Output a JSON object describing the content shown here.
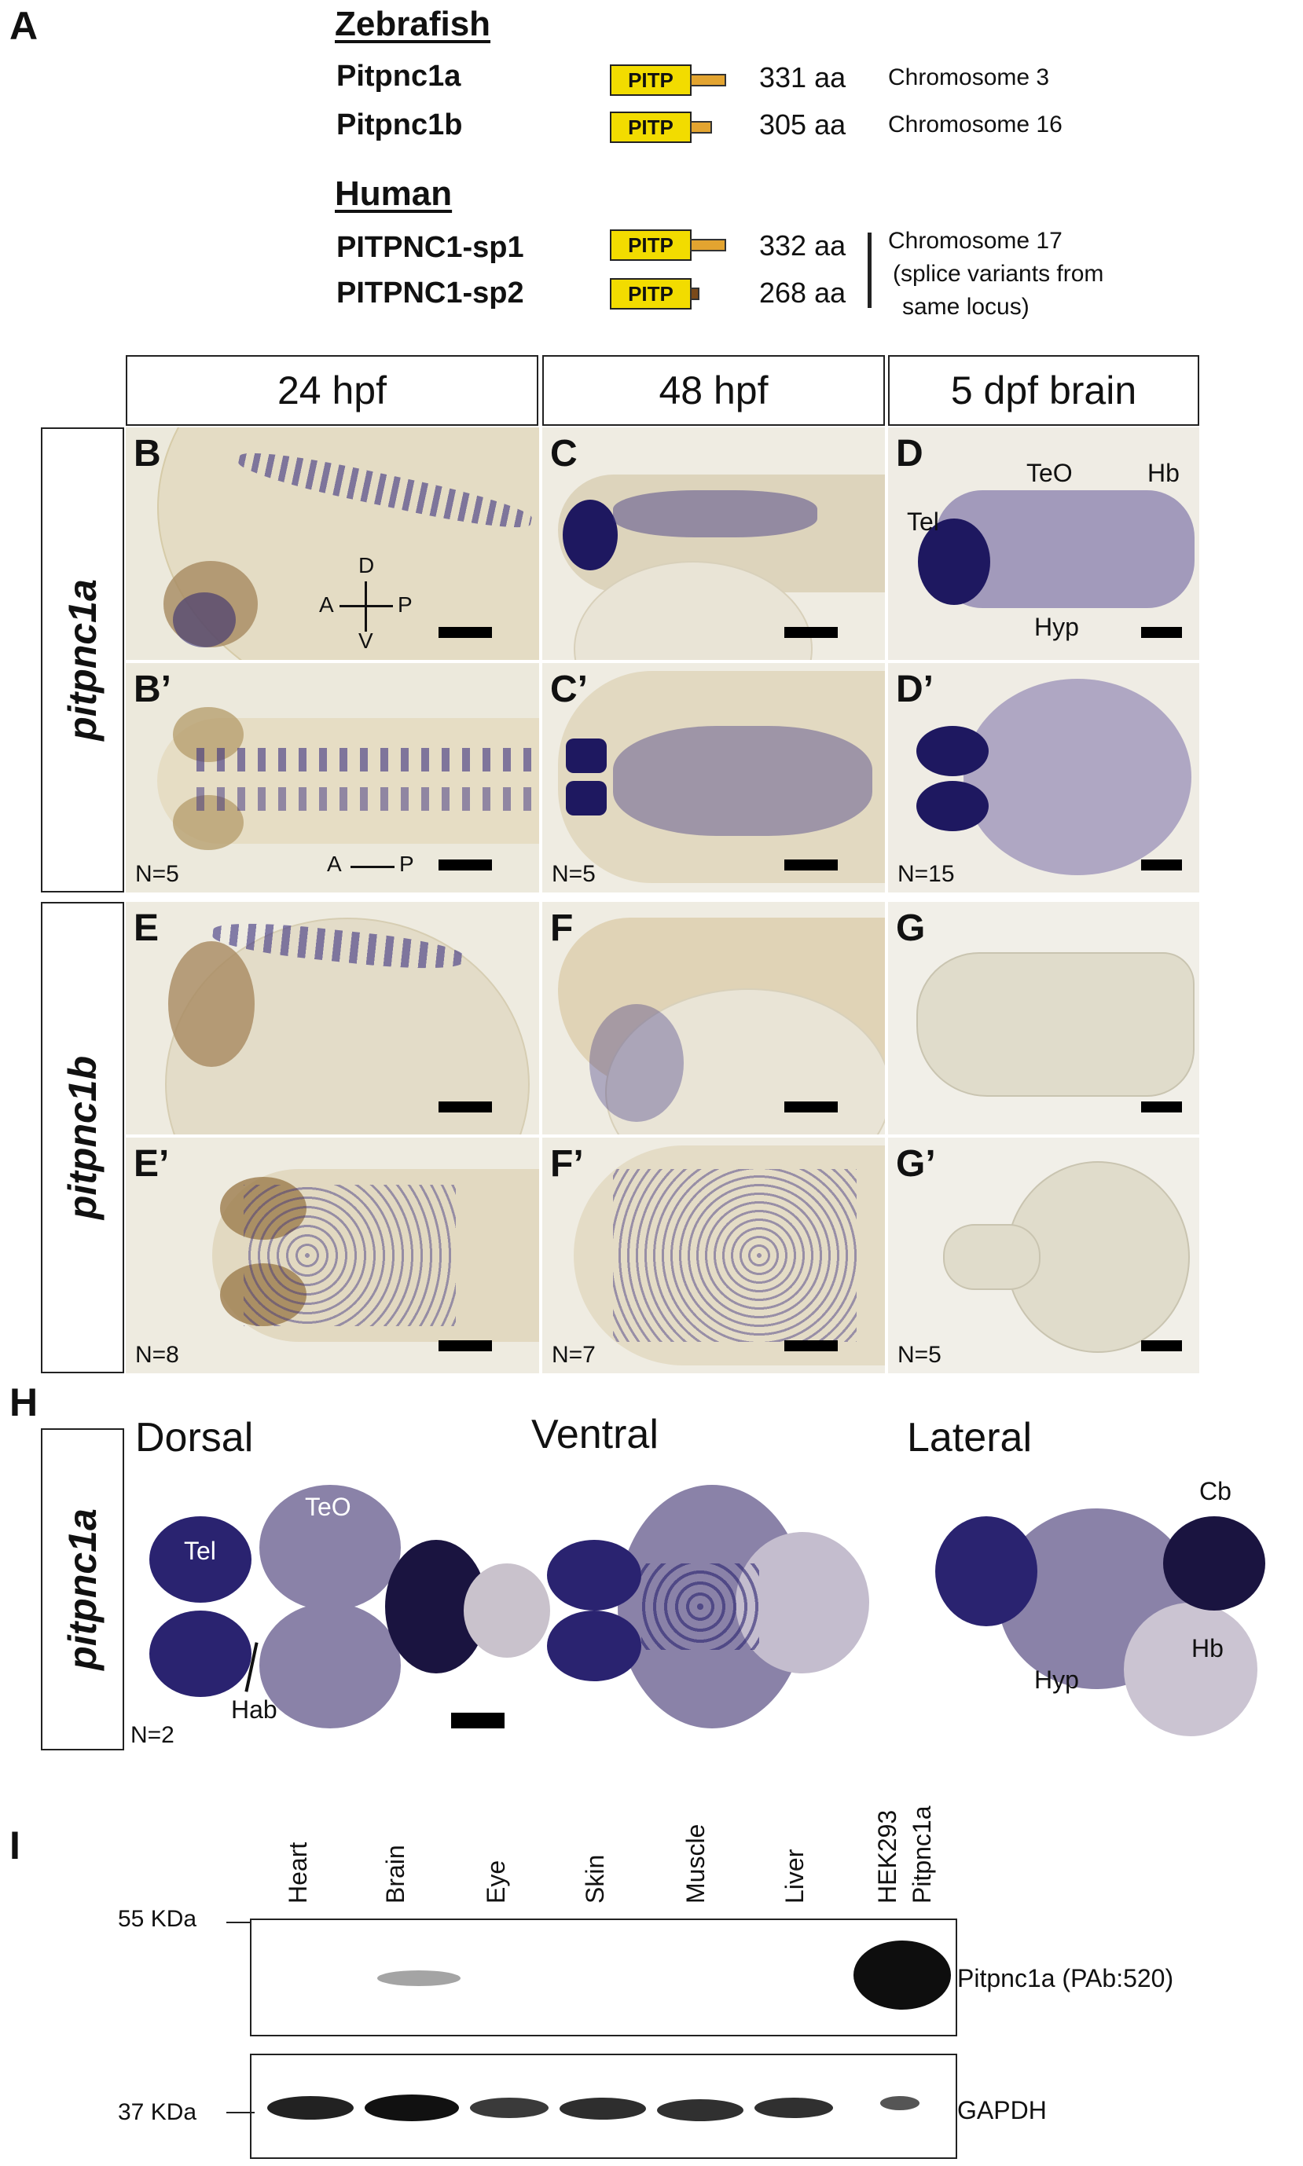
{
  "panels": {
    "A": "A",
    "B": "B",
    "B2": "B’",
    "C": "C",
    "C2": "C’",
    "D": "D",
    "D2": "D’",
    "E": "E",
    "E2": "E’",
    "F": "F",
    "F2": "F’",
    "G": "G",
    "G2": "G’",
    "H": "H",
    "I": "I"
  },
  "panel_a": {
    "zebrafish_heading": "Zebrafish",
    "human_heading": "Human",
    "proteins": [
      {
        "name": "Pitpnc1a",
        "domain": "PITP",
        "length": "331 aa",
        "location": "Chromosome 3"
      },
      {
        "name": "Pitpnc1b",
        "domain": "PITP",
        "length": "305 aa",
        "location": "Chromosome 16"
      },
      {
        "name": "PITPNC1-sp1",
        "domain": "PITP",
        "length": "332 aa"
      },
      {
        "name": "PITPNC1-sp2",
        "domain": "PITP",
        "length": "268 aa"
      }
    ],
    "human_location": "Chromosome 17",
    "human_note_1": "(splice variants from",
    "human_note_2": "same locus)"
  },
  "columns": [
    "24 hpf",
    "48 hpf",
    "5 dpf brain"
  ],
  "rows": [
    "pitpnc1a",
    "pitpnc1b"
  ],
  "axes": {
    "D": "D",
    "V": "V",
    "A": "A",
    "P": "P"
  },
  "regions": {
    "tel": "Tel",
    "teo": "TeO",
    "hb": "Hb",
    "hyp": "Hyp",
    "hab": "Hab",
    "cb": "Cb"
  },
  "counts": {
    "b": "N=5",
    "c": "N=5",
    "d": "N=15",
    "e": "N=8",
    "f": "N=7",
    "g": "N=5",
    "h": "N=2"
  },
  "panel_h": {
    "row_label": "pitpnc1a",
    "views": [
      "Dorsal",
      "Ventral",
      "Lateral"
    ]
  },
  "panel_i": {
    "lanes": [
      "Heart",
      "Brain",
      "Eye",
      "Skin",
      "Muscle",
      "Liver",
      "HEK293"
    ],
    "lane_extra": "Pitpnc1a",
    "marker_top": "55 KDa",
    "marker_bottom": "37 KDa",
    "blot_top_label": "Pitpnc1a (PAb:520)",
    "blot_bottom_label": "GAPDH"
  },
  "colors": {
    "pitp_domain": "#f2dc00",
    "tail": "#e3a430",
    "stain": "#2a2370",
    "background": "#ece9dc"
  }
}
